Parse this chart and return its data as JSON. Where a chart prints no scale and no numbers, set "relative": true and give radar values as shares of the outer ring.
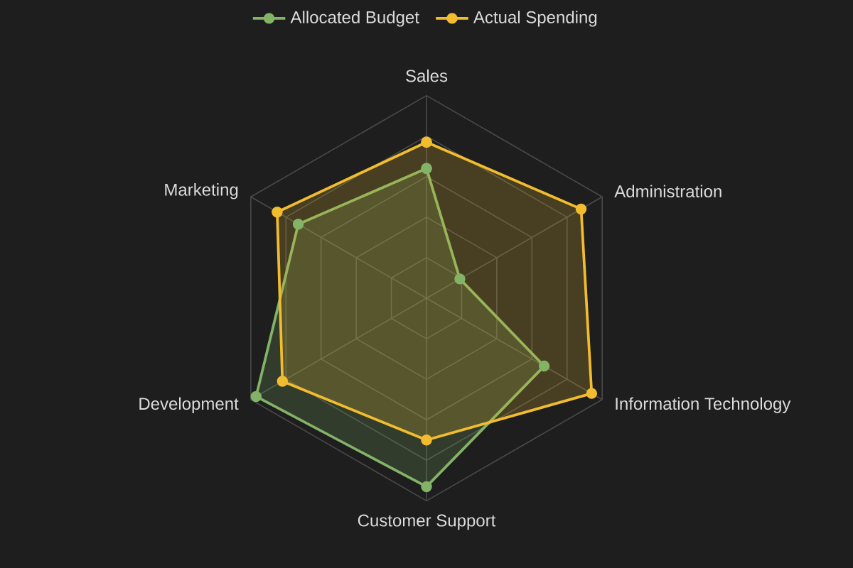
{
  "chart_data": {
    "type": "radar",
    "relative": true,
    "grid": true,
    "legend": "top",
    "marker": "circle",
    "line_style": "solid",
    "categories": [
      "Sales",
      "Administration",
      "Information Technology",
      "Customer Support",
      "Development",
      "Marketing"
    ],
    "series": [
      {
        "name": "Allocated Budget",
        "color": "#82b366",
        "values": [
          0.64,
          0.19,
          0.67,
          0.93,
          0.97,
          0.73
        ]
      },
      {
        "name": "Actual Spending",
        "color": "#f2bc2f",
        "values": [
          0.77,
          0.88,
          0.94,
          0.7,
          0.82,
          0.85
        ]
      }
    ]
  }
}
